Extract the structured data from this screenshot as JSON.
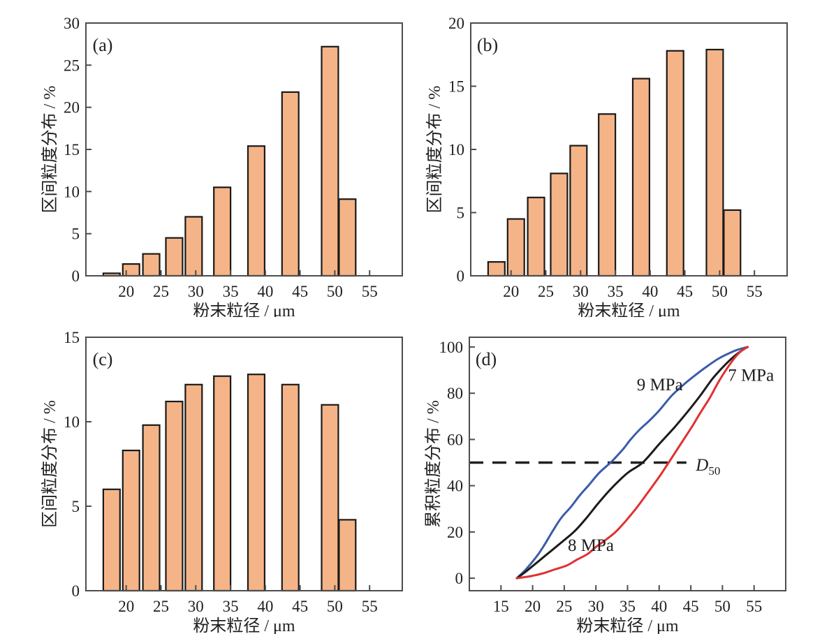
{
  "figure": {
    "background": "#ffffff",
    "panel_labels": [
      "(a)",
      "(b)",
      "(c)",
      "(d)"
    ]
  },
  "colors": {
    "bar_fill": "#F5B488",
    "bar_edge": "#1a1a1a",
    "axis": "#4d4d4d",
    "text": "#1f1f1f",
    "curve_blue": "#3A5CA9",
    "curve_black": "#1C1C1C",
    "curve_red": "#E03132",
    "dash_line": "#222222"
  },
  "chart_data": [
    {
      "id": "a",
      "type": "bar",
      "panel_label": "(a)",
      "xlabel": "粉末粒径 / μm",
      "ylabel": "区间粒度分布 / %",
      "xlim": [
        14.2,
        59.7
      ],
      "ylim": [
        0,
        30
      ],
      "xticks": [
        20,
        25,
        30,
        35,
        40,
        45,
        50,
        55
      ],
      "yticks": [
        0,
        5,
        10,
        15,
        20,
        25,
        30
      ],
      "bar_centers": [
        17.9,
        20.7,
        23.6,
        26.9,
        29.7,
        33.8,
        38.7,
        43.6,
        49.3,
        51.8
      ],
      "bar_width": 2.4,
      "values": [
        0.3,
        1.4,
        2.6,
        4.5,
        7.0,
        10.5,
        15.4,
        21.8,
        27.2,
        9.1
      ]
    },
    {
      "id": "b",
      "type": "bar",
      "panel_label": "(b)",
      "xlabel": "粉末粒径 / μm",
      "ylabel": "区间粒度分布 / %",
      "xlim": [
        14.2,
        59.7
      ],
      "ylim": [
        0,
        20
      ],
      "xticks": [
        20,
        25,
        30,
        35,
        40,
        45,
        50,
        55
      ],
      "yticks": [
        0,
        5,
        10,
        15,
        20
      ],
      "bar_centers": [
        17.9,
        20.7,
        23.6,
        26.9,
        29.7,
        33.8,
        38.7,
        43.6,
        49.3,
        51.8
      ],
      "bar_width": 2.4,
      "values": [
        1.1,
        4.5,
        6.2,
        8.1,
        10.3,
        12.8,
        15.6,
        17.8,
        17.9,
        5.2
      ]
    },
    {
      "id": "c",
      "type": "bar",
      "panel_label": "(c)",
      "xlabel": "粉末粒径 / μm",
      "ylabel": "区间粒度分布 / %",
      "xlim": [
        14.2,
        59.7
      ],
      "ylim": [
        0,
        15
      ],
      "xticks": [
        20,
        25,
        30,
        35,
        40,
        45,
        50,
        55
      ],
      "yticks": [
        0,
        5,
        10,
        15
      ],
      "bar_centers": [
        17.9,
        20.7,
        23.6,
        26.9,
        29.7,
        33.8,
        38.7,
        43.6,
        49.3,
        51.8
      ],
      "bar_width": 2.4,
      "values": [
        6.0,
        8.3,
        9.8,
        11.2,
        12.2,
        12.7,
        12.8,
        12.2,
        11.0,
        4.2
      ]
    },
    {
      "id": "d",
      "type": "line",
      "panel_label": "(d)",
      "xlabel": "粉末粒径 / μm",
      "ylabel": "累积粒度分布 / %",
      "xlim": [
        10,
        60
      ],
      "ylim": [
        -5.4,
        104.2
      ],
      "xticks": [
        15,
        20,
        25,
        30,
        35,
        40,
        45,
        50,
        55
      ],
      "yticks": [
        0,
        20,
        40,
        60,
        80,
        100
      ],
      "series": [
        {
          "name": "9 MPa",
          "color": "#3A5CA9",
          "points": [
            [
              17.5,
              0
            ],
            [
              19,
              4
            ],
            [
              20.8,
              10
            ],
            [
              22,
              15
            ],
            [
              23.2,
              20.5
            ],
            [
              24.5,
              26
            ],
            [
              26.1,
              31
            ],
            [
              27.5,
              36
            ],
            [
              28.8,
              40
            ],
            [
              30.5,
              45.5
            ],
            [
              32.5,
              50.5
            ],
            [
              34.2,
              55.5
            ],
            [
              35.5,
              60
            ],
            [
              37,
              64.5
            ],
            [
              38.4,
              68
            ],
            [
              40,
              72.5
            ],
            [
              42,
              79
            ],
            [
              44,
              84
            ],
            [
              45.8,
              88
            ],
            [
              47.5,
              91.5
            ],
            [
              49.4,
              95
            ],
            [
              51,
              97.2
            ],
            [
              52.5,
              98.9
            ],
            [
              54,
              100
            ]
          ]
        },
        {
          "name": "8 MPa",
          "color": "#1C1C1C",
          "points": [
            [
              17.5,
              0
            ],
            [
              19,
              3
            ],
            [
              21,
              7.5
            ],
            [
              23,
              12
            ],
            [
              25,
              16.5
            ],
            [
              26.7,
              20.5
            ],
            [
              28.5,
              26
            ],
            [
              30.4,
              32.5
            ],
            [
              32.5,
              39
            ],
            [
              35,
              45.5
            ],
            [
              37.4,
              50
            ],
            [
              40,
              58
            ],
            [
              42.5,
              65.5
            ],
            [
              44.5,
              72
            ],
            [
              46.5,
              79
            ],
            [
              48.5,
              86.5
            ],
            [
              50.5,
              92.5
            ],
            [
              52,
              96.3
            ],
            [
              53.2,
              98.7
            ],
            [
              54,
              100
            ]
          ]
        },
        {
          "name": "7 MPa",
          "color": "#E03132",
          "points": [
            [
              17.5,
              0
            ],
            [
              19.5,
              0.8
            ],
            [
              21.5,
              2
            ],
            [
              23.5,
              3.8
            ],
            [
              25.4,
              5.5
            ],
            [
              27,
              8
            ],
            [
              28.7,
              10.5
            ],
            [
              30,
              13.5
            ],
            [
              31.5,
              16.5
            ],
            [
              33.1,
              20
            ],
            [
              34.8,
              25
            ],
            [
              36.3,
              30
            ],
            [
              37.8,
              35.5
            ],
            [
              39,
              40
            ],
            [
              40.3,
              45
            ],
            [
              41.5,
              50
            ],
            [
              42.8,
              55.5
            ],
            [
              44,
              60.5
            ],
            [
              45.3,
              66
            ],
            [
              46.5,
              71.5
            ],
            [
              48,
              78
            ],
            [
              49.4,
              85
            ],
            [
              50.8,
              91
            ],
            [
              52,
              95.5
            ],
            [
              53,
              98.3
            ],
            [
              54,
              100
            ]
          ]
        }
      ],
      "annotations": [
        {
          "text": "9 MPa",
          "x": 40.1,
          "y": 84,
          "anchor": "middle"
        },
        {
          "text": "8 MPa",
          "x": 29.2,
          "y": 14.5,
          "anchor": "middle"
        },
        {
          "text": "7 MPa",
          "x": 54.5,
          "y": 88,
          "anchor": "middle"
        }
      ],
      "d50_line": {
        "y": 50,
        "x_start": 10,
        "x_end": 44.3,
        "label_main": "D",
        "label_sub": "50",
        "label_x": 45.8,
        "label_y": 49.3
      }
    }
  ]
}
